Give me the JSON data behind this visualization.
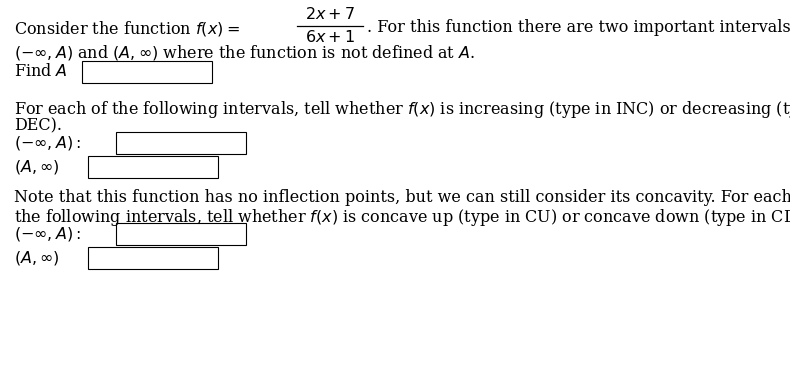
{
  "bg_color": "#ffffff",
  "text_color": "#000000",
  "fs": 11.5,
  "input_box_color": "#ffffff",
  "input_box_edge": "#000000",
  "lines": {
    "line1_left": "Consider the function $f(x) = $",
    "frac_num": "$2x + 7$",
    "frac_den": "$6x + 1$",
    "line1_right": ". For this function there are two important intervals:",
    "line2": "$(-\\infty, A)$ and $(A, \\infty)$ where the function is not defined at $A$.",
    "line3_label": "Find $A$",
    "line4": "For each of the following intervals, tell whether $f(x)$ is increasing (type in INC) or decreasing (type in",
    "line4b": "DEC).",
    "interval_neg_inf_A": "$(-\\infty, A):$",
    "interval_A_inf": "$(A, \\infty)$",
    "note_line1": "Note that this function has no inflection points, but we can still consider its concavity. For each of",
    "note_line2": "the following intervals, tell whether $f(x)$ is concave up (type in CU) or concave down (type in CD).",
    "interval_neg_inf_A2": "$(-\\infty, A):$",
    "interval_A_inf2": "$(A, \\infty)$"
  }
}
